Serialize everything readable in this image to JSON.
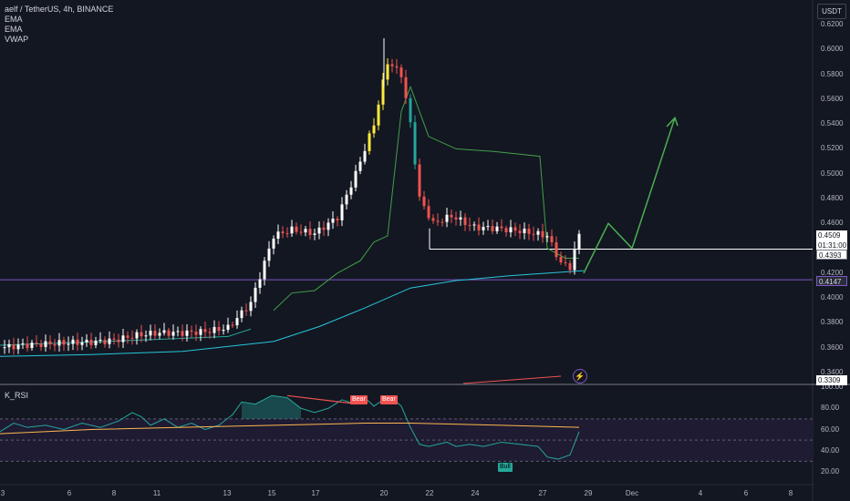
{
  "legend": {
    "symbol": "aelf / TetherUS, 4h, BINANCE",
    "ema1": "EMA",
    "ema2": "EMA",
    "vwap": "VWAP"
  },
  "currency_button": "USDT",
  "price_axis": [
    "0.6200",
    "0.6000",
    "0.5800",
    "0.5600",
    "0.5400",
    "0.5200",
    "0.5000",
    "0.4800",
    "0.4600",
    "0.4200",
    "0.4000",
    "0.3800",
    "0.3600",
    "0.3400"
  ],
  "price_tags": {
    "last": "0.4509",
    "countdown": "01:31:00",
    "line": "0.4393",
    "purple": "0.4147",
    "low": "0.3309"
  },
  "rsi": {
    "title": "K_RSI",
    "axis": [
      "100.00",
      "80.00",
      "60.00",
      "40.00",
      "20.00"
    ],
    "signals": {
      "bear1": "Bear",
      "bear2": "Bear",
      "bull": "Bull"
    }
  },
  "time_axis": [
    "3",
    "6",
    "8",
    "11",
    "13",
    "15",
    "17",
    "20",
    "22",
    "24",
    "27",
    "29",
    "Dec",
    "4",
    "6",
    "8"
  ],
  "chart_data": {
    "type": "candlestick",
    "symbol": "aelf / TetherUS",
    "interval": "4h",
    "exchange": "BINANCE",
    "currency": "USDT",
    "ylim": [
      0.3309,
      0.62
    ],
    "xlabels": [
      "3",
      "6",
      "8",
      "11",
      "13",
      "15",
      "17",
      "20",
      "22",
      "24",
      "27",
      "29",
      "Dec",
      "4",
      "6",
      "8"
    ],
    "key_prices": {
      "last": 0.4509,
      "horizontal_line": 0.4393,
      "support_line": 0.4147
    },
    "approx_close_path": [
      [
        0,
        0.36
      ],
      [
        25,
        0.362
      ],
      [
        50,
        0.363
      ],
      [
        75,
        0.364
      ],
      [
        100,
        0.3645
      ],
      [
        125,
        0.366
      ],
      [
        150,
        0.37
      ],
      [
        175,
        0.372
      ],
      [
        200,
        0.372
      ],
      [
        225,
        0.373
      ],
      [
        250,
        0.376
      ],
      [
        275,
        0.396
      ],
      [
        300,
        0.45
      ],
      [
        320,
        0.455
      ],
      [
        345,
        0.452
      ],
      [
        370,
        0.465
      ],
      [
        390,
        0.5
      ],
      [
        410,
        0.54
      ],
      [
        425,
        0.59
      ],
      [
        440,
        0.58
      ],
      [
        450,
        0.54
      ],
      [
        460,
        0.48
      ],
      [
        475,
        0.46
      ],
      [
        495,
        0.466
      ],
      [
        520,
        0.457
      ],
      [
        545,
        0.456
      ],
      [
        570,
        0.454
      ],
      [
        600,
        0.45
      ],
      [
        615,
        0.428
      ],
      [
        625,
        0.425
      ],
      [
        635,
        0.4509
      ]
    ],
    "projection_path": [
      [
        640,
        0.42
      ],
      [
        667,
        0.46
      ],
      [
        693,
        0.44
      ],
      [
        740,
        0.545
      ]
    ],
    "rsi_ylim": [
      20,
      100
    ],
    "rsi_levels": [
      30,
      50,
      70
    ]
  }
}
